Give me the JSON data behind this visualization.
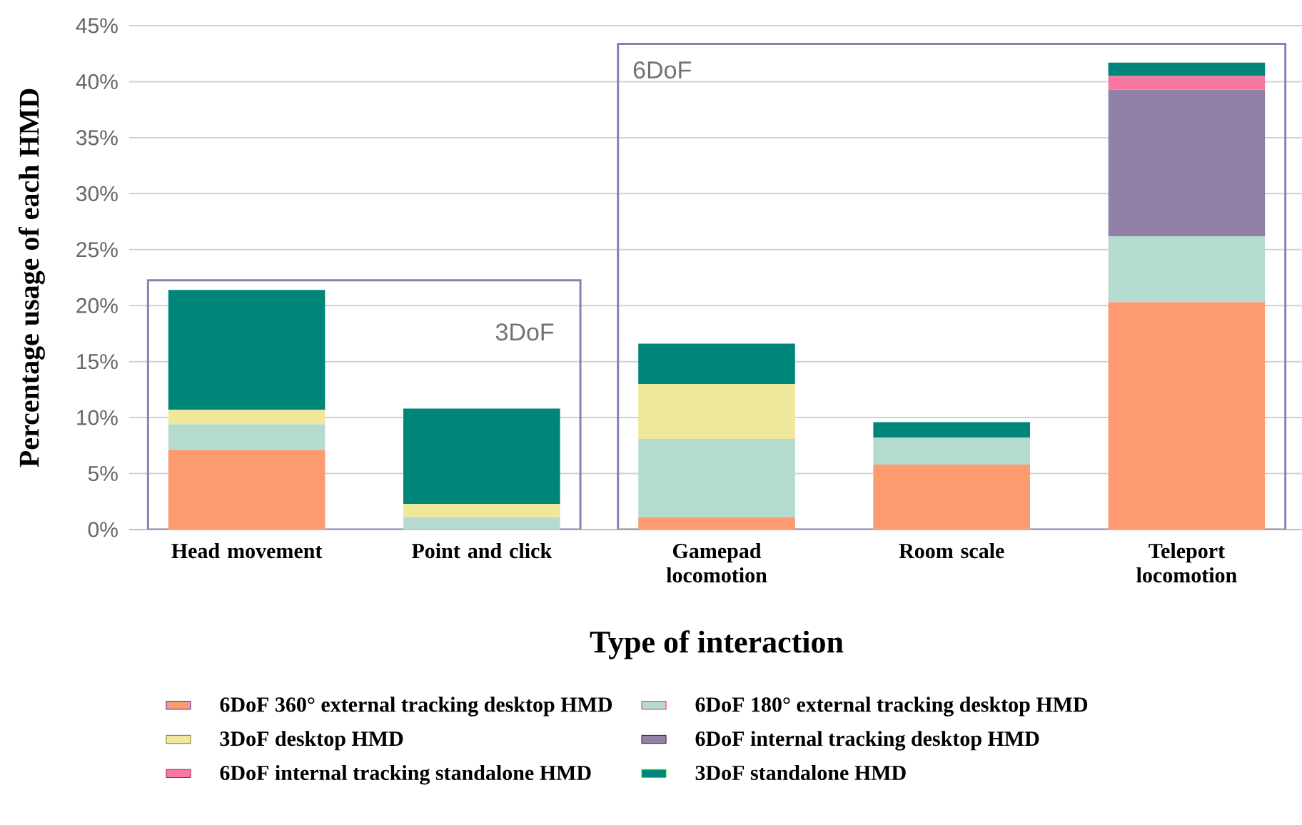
{
  "chart_data": {
    "type": "bar",
    "stacked": true,
    "xlabel": "Type of interaction",
    "ylabel": "Percentage usage of each HMD",
    "categories": [
      "Head movement",
      "Point and click",
      "Gamepad locomotion",
      "Room scale",
      "Teleport locomotion"
    ],
    "series": [
      {
        "name": "6DoF 360° external tracking desktop HMD",
        "color": "#fd9a70",
        "values": [
          7.1,
          0,
          1.1,
          5.8,
          20.3
        ]
      },
      {
        "name": "6DoF 180° external tracking desktop HMD",
        "color": "#b5dbd0",
        "values": [
          2.3,
          1.1,
          7.0,
          2.4,
          5.9
        ]
      },
      {
        "name": "3DoF desktop HMD",
        "color": "#efe79a",
        "values": [
          1.3,
          1.2,
          4.9,
          0,
          0
        ]
      },
      {
        "name": "6DoF internal tracking desktop HMD",
        "color": "#9281a7",
        "values": [
          0,
          0,
          0,
          0,
          13.1
        ]
      },
      {
        "name": "6DoF internal tracking standalone HMD",
        "color": "#f877a0",
        "values": [
          0,
          0,
          0,
          0,
          1.2
        ]
      },
      {
        "name": "3DoF standalone HMD",
        "color": "#00857a",
        "values": [
          10.7,
          8.5,
          3.6,
          1.4,
          1.2
        ]
      }
    ],
    "ylim": [
      0,
      45
    ],
    "yticks": [
      {
        "value": 0,
        "label": "0%"
      },
      {
        "value": 5,
        "label": "5%"
      },
      {
        "value": 10,
        "label": "10%"
      },
      {
        "value": 15,
        "label": "15%"
      },
      {
        "value": 20,
        "label": "20%"
      },
      {
        "value": 25,
        "label": "25%"
      },
      {
        "value": 30,
        "label": "30%"
      },
      {
        "value": 35,
        "label": "35%"
      },
      {
        "value": 40,
        "label": "40%"
      },
      {
        "value": 45,
        "label": "45%"
      }
    ],
    "annotations": [
      "3DoF",
      "6DoF"
    ],
    "grid": "y",
    "legend": "bottom"
  }
}
